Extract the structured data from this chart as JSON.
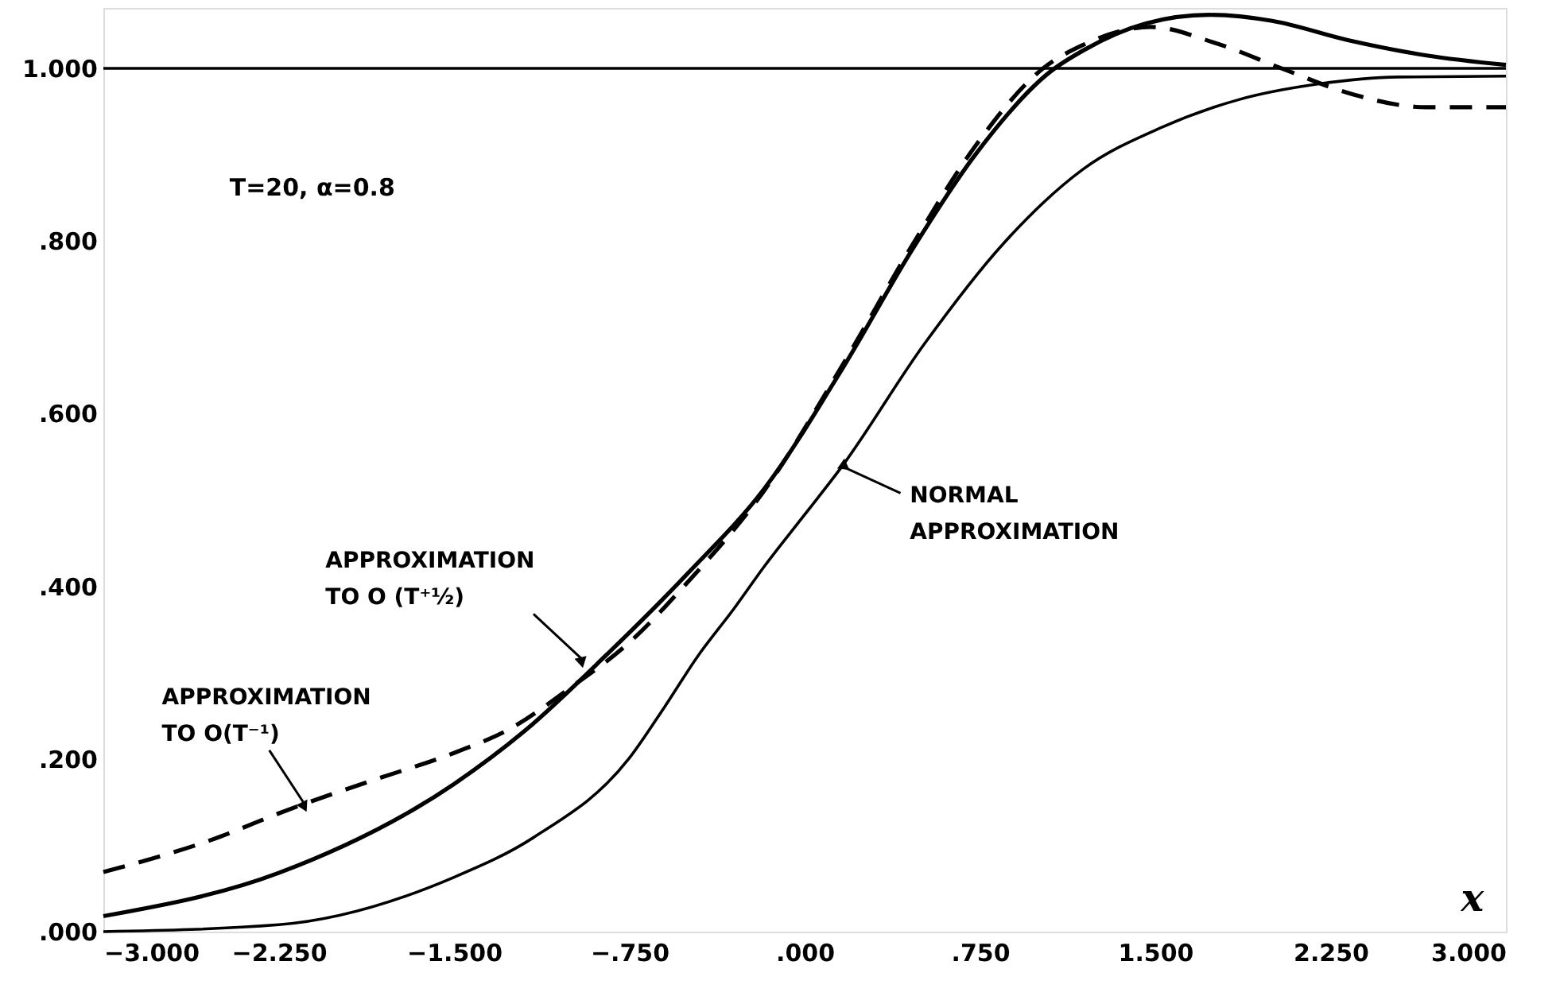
{
  "chart_data": {
    "type": "line",
    "xlabel": "x",
    "xlim": [
      -3.0,
      3.0
    ],
    "xticks": [
      {
        "value": -3.0,
        "label": "−3.000"
      },
      {
        "value": -2.25,
        "label": "−2.250"
      },
      {
        "value": -1.5,
        "label": "−1.500"
      },
      {
        "value": -0.75,
        "label": "−.750"
      },
      {
        "value": 0.0,
        "label": ".000"
      },
      {
        "value": 0.75,
        "label": ".750"
      },
      {
        "value": 1.5,
        "label": "1.500"
      },
      {
        "value": 2.25,
        "label": "2.250"
      },
      {
        "value": 3.0,
        "label": "3.000"
      }
    ],
    "ylim": [
      0.0,
      1.07
    ],
    "yticks": [
      {
        "value": 0.0,
        "label": ".000"
      },
      {
        "value": 0.2,
        "label": ".200"
      },
      {
        "value": 0.4,
        "label": ".400"
      },
      {
        "value": 0.6,
        "label": ".600"
      },
      {
        "value": 0.8,
        "label": ".800"
      },
      {
        "value": 1.0,
        "label": "1.000"
      }
    ],
    "grid": false,
    "ref_lines": [
      {
        "axis": "y",
        "value": 1.0,
        "color": "#000000",
        "line_style": "solid"
      }
    ],
    "annotations": [
      "T=20,  α=0.8",
      {
        "text": "APPROXIMATION\nTO O(T⁻¹)",
        "x": -2.14,
        "y": 0.148
      },
      {
        "text": "APPROXIMATION\nTO O (T⁺½)",
        "x": -0.95,
        "y": 0.315
      },
      {
        "text": "NORMAL\nAPPROXIMATION",
        "x": 0.16,
        "y": 0.539
      }
    ],
    "series": [
      {
        "color": "#000000",
        "line_style": "solid",
        "x": [
          -3.0,
          -2.25,
          -1.5,
          -1.2,
          -0.85,
          -0.5,
          -0.17,
          0.17,
          0.46,
          0.73,
          1.05,
          1.2,
          1.46,
          1.73,
          2.0,
          2.32,
          2.66,
          3.0
        ],
        "values": [
          0.018,
          0.068,
          0.171,
          0.232,
          0.32,
          0.415,
          0.514,
          0.656,
          0.79,
          0.9,
          0.996,
          1.022,
          1.052,
          1.062,
          1.055,
          1.033,
          1.015,
          1.004
        ]
      },
      {
        "color": "#000000",
        "line_style": "dashed",
        "x": [
          -3.0,
          -2.5,
          -2.25,
          -2.14,
          -1.84,
          -1.5,
          -1.26,
          -1.0,
          -0.75,
          -0.5,
          -0.17,
          0.17,
          0.46,
          0.73,
          1.02,
          1.19,
          1.48,
          1.75,
          2.05,
          2.32,
          2.66,
          3.0
        ],
        "values": [
          0.069,
          0.11,
          0.137,
          0.148,
          0.176,
          0.207,
          0.235,
          0.283,
          0.335,
          0.405,
          0.512,
          0.66,
          0.795,
          0.91,
          1.0,
          1.027,
          1.048,
          1.03,
          0.999,
          0.972,
          0.955,
          0.955
        ]
      },
      {
        "color": "#000000",
        "line_style": "solid",
        "x": [
          -3.0,
          -2.25,
          -1.5,
          -1.16,
          -0.75,
          -0.6,
          -0.46,
          -0.3,
          -0.17,
          0.0,
          0.16,
          0.51,
          0.85,
          1.19,
          1.53,
          1.86,
          2.2,
          2.54,
          3.0
        ],
        "values": [
          0.0,
          0.008,
          0.063,
          0.109,
          0.201,
          0.26,
          0.318,
          0.375,
          0.424,
          0.483,
          0.539,
          0.68,
          0.797,
          0.883,
          0.932,
          0.964,
          0.982,
          0.99,
          0.991
        ]
      }
    ]
  }
}
